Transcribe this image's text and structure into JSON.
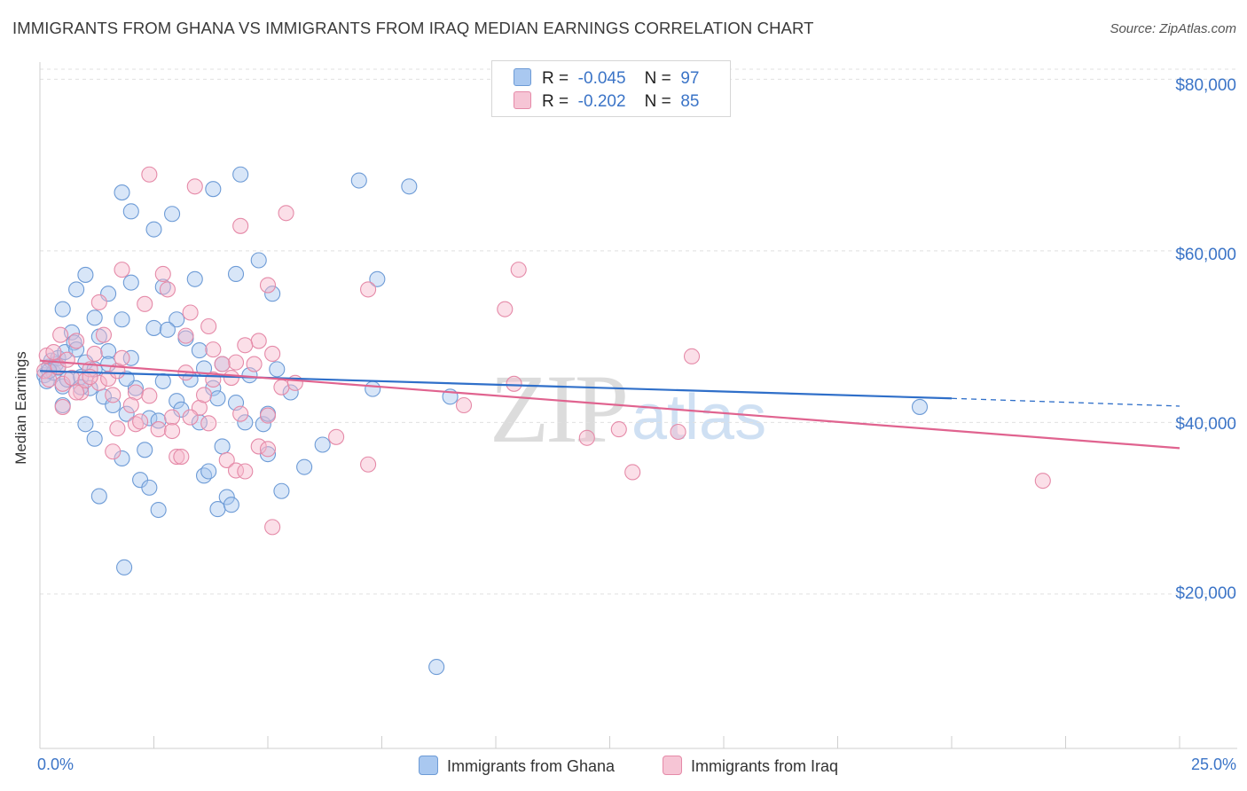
{
  "header": {
    "title": "IMMIGRANTS FROM GHANA VS IMMIGRANTS FROM IRAQ MEDIAN EARNINGS CORRELATION CHART",
    "source": "Source: ZipAtlas.com"
  },
  "watermark": {
    "zip": "ZIP",
    "atlas": "atlas"
  },
  "stats_legend": {
    "rows": [
      {
        "r_label": "R =",
        "r_value": "-0.045",
        "n_label": "N =",
        "n_value": "97"
      },
      {
        "r_label": "R =",
        "r_value": "-0.202",
        "n_label": "N =",
        "n_value": "85"
      }
    ]
  },
  "colors": {
    "ghana_fill": "#a9c8f0",
    "ghana_stroke": "#6d9bd6",
    "ghana_line": "#2f6fc9",
    "iraq_fill": "#f6b8cc",
    "iraq_stroke": "#e58aa8",
    "iraq_line": "#e0638f",
    "tick_text": "#3b74c7"
  },
  "chart_data": {
    "type": "scatter",
    "title": "IMMIGRANTS FROM GHANA VS IMMIGRANTS FROM IRAQ MEDIAN EARNINGS CORRELATION CHART",
    "xlabel": "",
    "ylabel": "Median Earnings",
    "xlim": [
      0,
      25
    ],
    "ylim": [
      2000,
      82000
    ],
    "x_tick_labels": [
      "0.0%",
      "25.0%"
    ],
    "y_ticks": [
      20000,
      40000,
      60000,
      80000
    ],
    "y_tick_labels": [
      "$20,000",
      "$40,000",
      "$60,000",
      "$80,000"
    ],
    "grid": true,
    "series": [
      {
        "name": "Immigrants from Ghana",
        "trend": {
          "x0": 0,
          "y0": 46000,
          "x1": 20,
          "y1": 42800,
          "dashed_to_x": 25,
          "dashed_to_y": 41900
        },
        "points": [
          [
            0.1,
            45500
          ],
          [
            0.15,
            44800
          ],
          [
            0.2,
            46500
          ],
          [
            0.25,
            47200
          ],
          [
            0.3,
            45800
          ],
          [
            0.35,
            46800
          ],
          [
            0.4,
            47500
          ],
          [
            0.5,
            44200
          ],
          [
            0.55,
            48200
          ],
          [
            0.6,
            45000
          ],
          [
            0.7,
            50500
          ],
          [
            0.75,
            49300
          ],
          [
            0.8,
            48500
          ],
          [
            0.9,
            45300
          ],
          [
            1.0,
            47000
          ],
          [
            1.1,
            44000
          ],
          [
            1.2,
            46200
          ],
          [
            1.3,
            50000
          ],
          [
            1.4,
            43000
          ],
          [
            1.5,
            48300
          ],
          [
            0.5,
            53200
          ],
          [
            0.8,
            55500
          ],
          [
            1.0,
            57200
          ],
          [
            1.2,
            52200
          ],
          [
            1.5,
            55000
          ],
          [
            1.8,
            52000
          ],
          [
            2.0,
            56300
          ],
          [
            2.5,
            51000
          ],
          [
            2.7,
            55800
          ],
          [
            3.0,
            52000
          ],
          [
            1.8,
            66800
          ],
          [
            2.0,
            64600
          ],
          [
            2.5,
            62500
          ],
          [
            2.9,
            64300
          ],
          [
            3.8,
            67200
          ],
          [
            4.4,
            68900
          ],
          [
            7.0,
            68200
          ],
          [
            8.1,
            67500
          ],
          [
            3.4,
            56700
          ],
          [
            4.3,
            57300
          ],
          [
            4.8,
            58900
          ],
          [
            5.1,
            55000
          ],
          [
            7.4,
            56700
          ],
          [
            1.6,
            42000
          ],
          [
            1.9,
            41000
          ],
          [
            2.1,
            44000
          ],
          [
            2.4,
            40500
          ],
          [
            2.7,
            44800
          ],
          [
            3.0,
            42500
          ],
          [
            3.3,
            45000
          ],
          [
            3.5,
            40000
          ],
          [
            3.8,
            44000
          ],
          [
            4.0,
            37200
          ],
          [
            4.3,
            42300
          ],
          [
            4.5,
            40000
          ],
          [
            4.9,
            39800
          ],
          [
            5.0,
            41000
          ],
          [
            5.2,
            46200
          ],
          [
            5.5,
            43500
          ],
          [
            5.0,
            36300
          ],
          [
            5.3,
            32000
          ],
          [
            5.8,
            34800
          ],
          [
            6.2,
            37400
          ],
          [
            7.3,
            43900
          ],
          [
            9.0,
            43000
          ],
          [
            19.3,
            41800
          ],
          [
            1.3,
            31400
          ],
          [
            2.2,
            33300
          ],
          [
            2.4,
            32400
          ],
          [
            2.6,
            29800
          ],
          [
            3.6,
            33800
          ],
          [
            3.7,
            34300
          ],
          [
            3.9,
            29900
          ],
          [
            4.1,
            31300
          ],
          [
            4.2,
            30400
          ],
          [
            1.8,
            35800
          ],
          [
            2.3,
            36800
          ],
          [
            1.0,
            39800
          ],
          [
            1.2,
            38100
          ],
          [
            0.5,
            42000
          ],
          [
            0.9,
            44100
          ],
          [
            1.5,
            46800
          ],
          [
            2.0,
            47500
          ],
          [
            2.8,
            50800
          ],
          [
            3.2,
            49800
          ],
          [
            3.6,
            46300
          ],
          [
            4.0,
            46800
          ],
          [
            1.9,
            45100
          ],
          [
            3.1,
            41500
          ],
          [
            2.6,
            40200
          ],
          [
            3.9,
            42800
          ],
          [
            4.6,
            45500
          ],
          [
            8.7,
            11500
          ],
          [
            1.85,
            23100
          ],
          [
            0.4,
            46400
          ],
          [
            0.2,
            46000
          ],
          [
            3.5,
            48400
          ]
        ]
      },
      {
        "name": "Immigrants from Iraq",
        "trend": {
          "x0": 0,
          "y0": 47200,
          "x1": 25,
          "y1": 37000
        },
        "points": [
          [
            0.1,
            46000
          ],
          [
            0.15,
            47800
          ],
          [
            0.2,
            45000
          ],
          [
            0.3,
            48200
          ],
          [
            0.4,
            46500
          ],
          [
            0.45,
            50200
          ],
          [
            0.5,
            44500
          ],
          [
            0.6,
            47300
          ],
          [
            0.7,
            45200
          ],
          [
            0.8,
            49500
          ],
          [
            0.9,
            43500
          ],
          [
            1.0,
            44900
          ],
          [
            1.1,
            46200
          ],
          [
            1.2,
            48000
          ],
          [
            1.3,
            44600
          ],
          [
            1.4,
            50200
          ],
          [
            1.5,
            45100
          ],
          [
            1.6,
            43200
          ],
          [
            1.7,
            46000
          ],
          [
            1.8,
            47500
          ],
          [
            2.3,
            53800
          ],
          [
            2.8,
            55500
          ],
          [
            3.3,
            52800
          ],
          [
            3.8,
            48500
          ],
          [
            4.3,
            47000
          ],
          [
            4.8,
            49500
          ],
          [
            5.1,
            48000
          ],
          [
            1.3,
            54000
          ],
          [
            1.8,
            57800
          ],
          [
            2.7,
            57300
          ],
          [
            2.4,
            68900
          ],
          [
            3.4,
            67500
          ],
          [
            4.4,
            62900
          ],
          [
            5.4,
            64400
          ],
          [
            7.2,
            55500
          ],
          [
            10.2,
            53200
          ],
          [
            10.5,
            57800
          ],
          [
            10.4,
            44500
          ],
          [
            5.0,
            56000
          ],
          [
            3.7,
            51200
          ],
          [
            2.1,
            43500
          ],
          [
            2.4,
            43100
          ],
          [
            2.6,
            39200
          ],
          [
            2.9,
            40600
          ],
          [
            3.2,
            45800
          ],
          [
            3.5,
            41700
          ],
          [
            3.7,
            39900
          ],
          [
            4.0,
            46800
          ],
          [
            4.2,
            45200
          ],
          [
            4.4,
            41000
          ],
          [
            4.7,
            46800
          ],
          [
            5.0,
            40800
          ],
          [
            5.3,
            44100
          ],
          [
            5.6,
            44600
          ],
          [
            1.6,
            36600
          ],
          [
            1.7,
            39300
          ],
          [
            2.1,
            39800
          ],
          [
            2.0,
            42000
          ],
          [
            3.0,
            36000
          ],
          [
            3.1,
            36000
          ],
          [
            3.3,
            40600
          ],
          [
            3.6,
            43200
          ],
          [
            4.1,
            35600
          ],
          [
            4.3,
            34400
          ],
          [
            4.5,
            34300
          ],
          [
            4.8,
            37200
          ],
          [
            5.0,
            36900
          ],
          [
            6.5,
            38300
          ],
          [
            7.2,
            35100
          ],
          [
            12.0,
            38200
          ],
          [
            12.7,
            39200
          ],
          [
            13.0,
            34200
          ],
          [
            14.0,
            38900
          ],
          [
            14.3,
            47700
          ],
          [
            22.0,
            33200
          ],
          [
            5.1,
            27800
          ],
          [
            0.5,
            41800
          ],
          [
            0.8,
            43500
          ],
          [
            1.1,
            45300
          ],
          [
            2.2,
            40100
          ],
          [
            2.9,
            39000
          ],
          [
            3.2,
            50100
          ],
          [
            3.8,
            45000
          ],
          [
            4.5,
            49000
          ],
          [
            9.3,
            42000
          ]
        ]
      }
    ]
  },
  "bottom_legend": {
    "ghana": "Immigrants from Ghana",
    "iraq": "Immigrants from Iraq"
  }
}
